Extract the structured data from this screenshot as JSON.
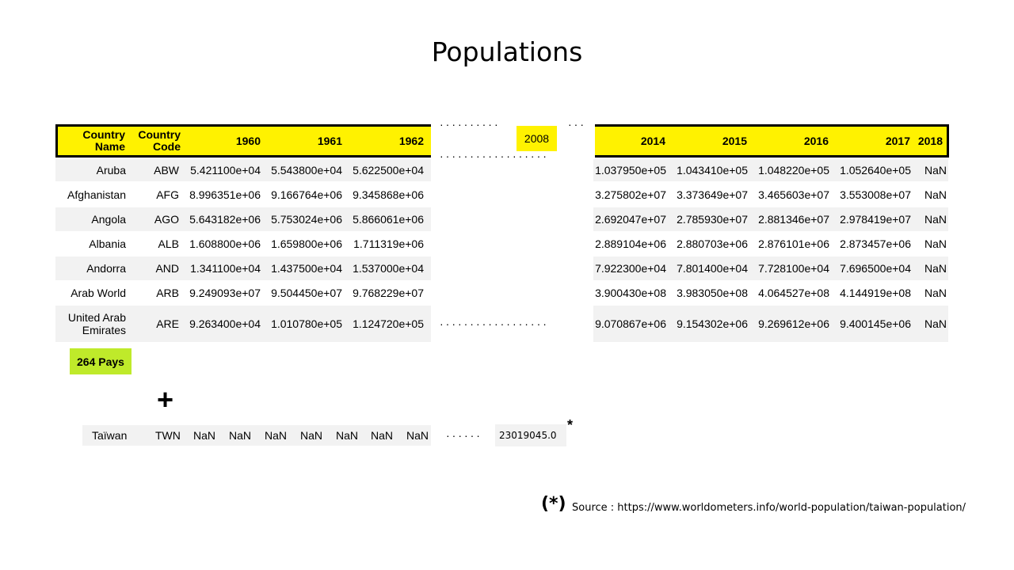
{
  "title": "Populations",
  "header": {
    "country_name": "Country Name",
    "country_code": "Country Code",
    "y1960": "1960",
    "y1961": "1961",
    "y1962": "1962",
    "y2008": "2008",
    "y2014": "2014",
    "y2015": "2015",
    "y2016": "2016",
    "y2017": "2017",
    "y2018": "2018"
  },
  "rows": [
    {
      "name": "Aruba",
      "code": "ABW",
      "v1960": "5.421100e+04",
      "v1961": "5.543800e+04",
      "v1962": "5.622500e+04",
      "v2014": "1.037950e+05",
      "v2015": "1.043410e+05",
      "v2016": "1.048220e+05",
      "v2017": "1.052640e+05",
      "v2018": "NaN"
    },
    {
      "name": "Afghanistan",
      "code": "AFG",
      "v1960": "8.996351e+06",
      "v1961": "9.166764e+06",
      "v1962": "9.345868e+06",
      "v2014": "3.275802e+07",
      "v2015": "3.373649e+07",
      "v2016": "3.465603e+07",
      "v2017": "3.553008e+07",
      "v2018": "NaN"
    },
    {
      "name": "Angola",
      "code": "AGO",
      "v1960": "5.643182e+06",
      "v1961": "5.753024e+06",
      "v1962": "5.866061e+06",
      "v2014": "2.692047e+07",
      "v2015": "2.785930e+07",
      "v2016": "2.881346e+07",
      "v2017": "2.978419e+07",
      "v2018": "NaN"
    },
    {
      "name": "Albania",
      "code": "ALB",
      "v1960": "1.608800e+06",
      "v1961": "1.659800e+06",
      "v1962": "1.711319e+06",
      "v2014": "2.889104e+06",
      "v2015": "2.880703e+06",
      "v2016": "2.876101e+06",
      "v2017": "2.873457e+06",
      "v2018": "NaN"
    },
    {
      "name": "Andorra",
      "code": "AND",
      "v1960": "1.341100e+04",
      "v1961": "1.437500e+04",
      "v1962": "1.537000e+04",
      "v2014": "7.922300e+04",
      "v2015": "7.801400e+04",
      "v2016": "7.728100e+04",
      "v2017": "7.696500e+04",
      "v2018": "NaN"
    },
    {
      "name": "Arab World",
      "code": "ARB",
      "v1960": "9.249093e+07",
      "v1961": "9.504450e+07",
      "v1962": "9.768229e+07",
      "v2014": "3.900430e+08",
      "v2015": "3.983050e+08",
      "v2016": "4.064527e+08",
      "v2017": "4.144919e+08",
      "v2018": "NaN"
    },
    {
      "name": "United Arab Emirates",
      "code": "ARE",
      "v1960": "9.263400e+04",
      "v1961": "1.010780e+05",
      "v1962": "1.124720e+05",
      "v2014": "9.070867e+06",
      "v2015": "9.154302e+06",
      "v2016": "9.269612e+06",
      "v2017": "9.400145e+06",
      "v2018": "NaN"
    }
  ],
  "badge": "264 Pays",
  "plus": "+",
  "taiwan": {
    "name": "Taïwan",
    "code": "TWN",
    "nan": [
      "NaN",
      "NaN",
      "NaN",
      "NaN",
      "NaN",
      "NaN",
      "NaN"
    ],
    "value": "23019045.0",
    "star": "*"
  },
  "source": {
    "mark": "(*)",
    "text": "Source :  https://www.worldometers.info/world-population/taiwan-population/"
  }
}
